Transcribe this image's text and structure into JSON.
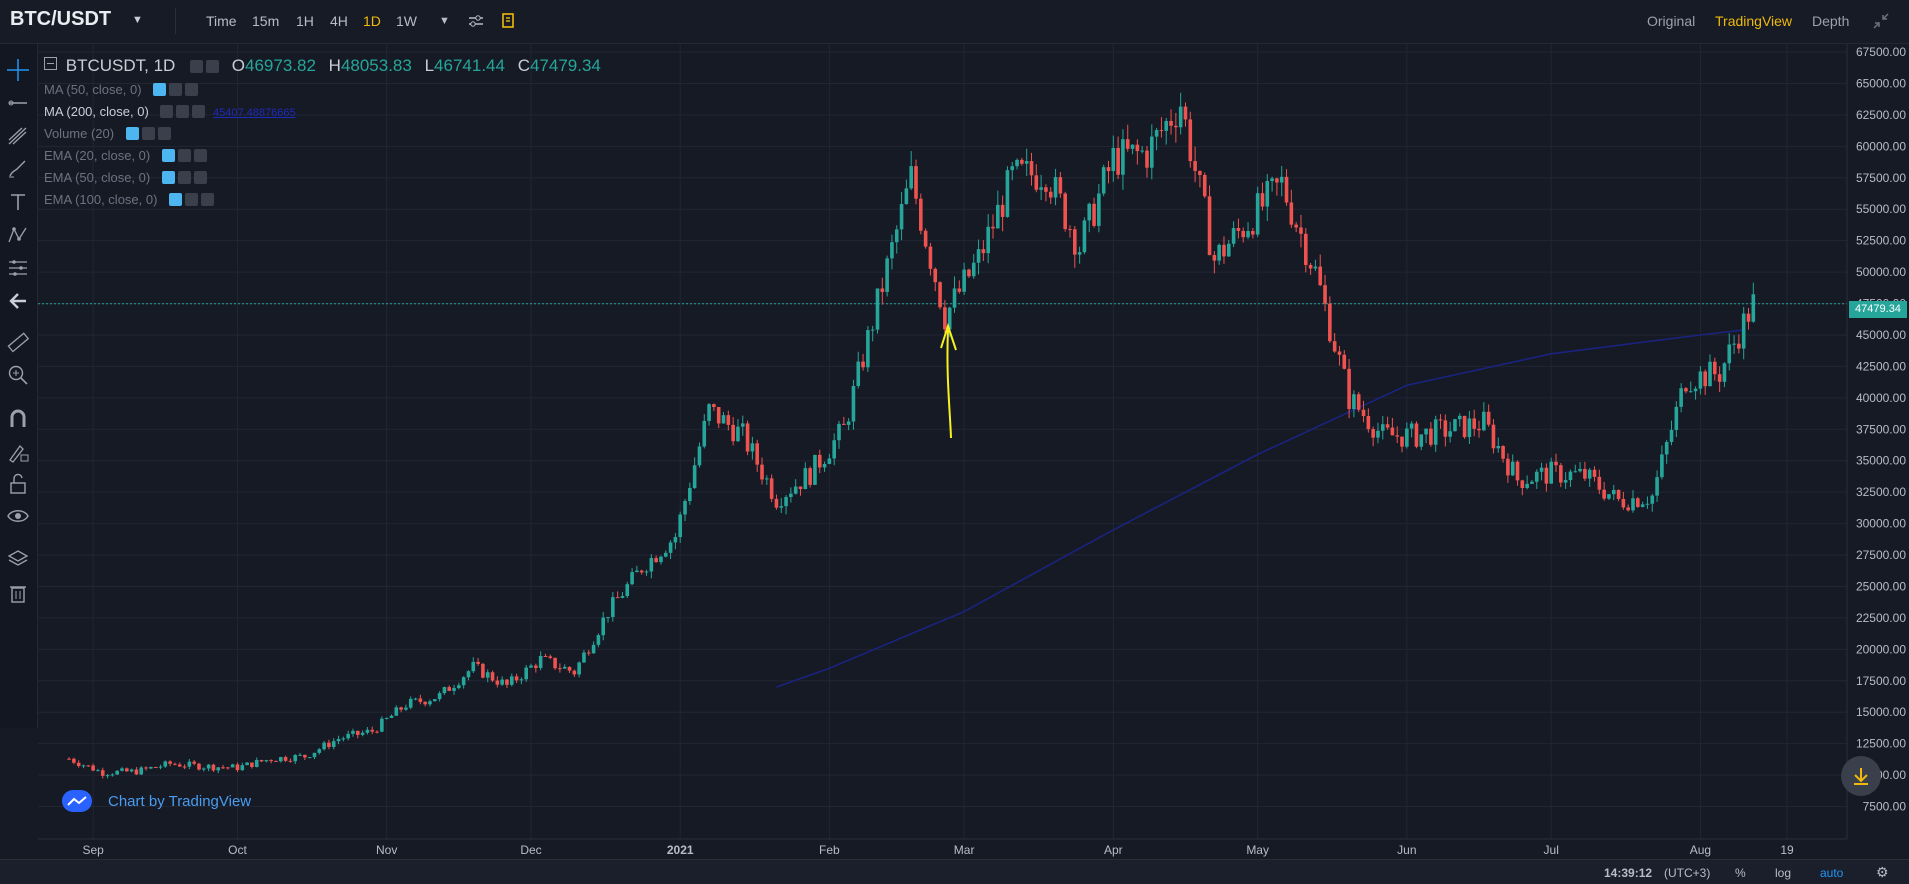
{
  "header": {
    "symbol": "BTC/USDT",
    "timeframes": [
      "Time",
      "15m",
      "1H",
      "4H",
      "1D",
      "1W"
    ],
    "active_timeframe": "1D",
    "views": [
      "Original",
      "TradingView",
      "Depth"
    ],
    "active_view": "TradingView"
  },
  "legend": {
    "symbol": "BTCUSDT, 1D",
    "open_label": "O",
    "open": "46973.82",
    "high_label": "H",
    "high": "48053.83",
    "low_label": "L",
    "low": "46741.44",
    "close_label": "C",
    "close": "47479.34",
    "indicators": [
      {
        "label": "MA (50, close, 0)",
        "value": ""
      },
      {
        "label": "MA (200, close, 0)",
        "value": "45407.48876665"
      },
      {
        "label": "Volume (20)",
        "value": ""
      },
      {
        "label": "EMA (20, close, 0)",
        "value": ""
      },
      {
        "label": "EMA (50, close, 0)",
        "value": ""
      },
      {
        "label": "EMA (100, close, 0)",
        "value": ""
      }
    ]
  },
  "branding": {
    "text": "Chart by TradingView"
  },
  "footer": {
    "time": "14:39:12",
    "tz": "(UTC+3)",
    "percent": "%",
    "log": "log",
    "auto": "auto"
  },
  "colors": {
    "up": "#26a69a",
    "down": "#ef5350",
    "ma200": "#1a237e",
    "accent": "#f0b90b",
    "price_line": "#26a69a",
    "annotation": "#f5f21e"
  },
  "chart_data": {
    "type": "candlestick",
    "title": "BTCUSDT, 1D",
    "x_tick_labels": [
      "Sep",
      "Oct",
      "Nov",
      "Dec",
      "2021",
      "Feb",
      "Mar",
      "Apr",
      "May",
      "Jun",
      "Jul",
      "Aug",
      "19"
    ],
    "y_tick_labels": [
      "67500.00",
      "65000.00",
      "62500.00",
      "60000.00",
      "57500.00",
      "55000.00",
      "52500.00",
      "50000.00",
      "47500.00",
      "45000.00",
      "42500.00",
      "40000.00",
      "37500.00",
      "35000.00",
      "32500.00",
      "30000.00",
      "27500.00",
      "25000.00",
      "22500.00",
      "20000.00",
      "17500.00",
      "15000.00",
      "12500.00",
      "10000.00",
      "7500.00"
    ],
    "ylim": [
      5000,
      67500
    ],
    "last_price": "47479.34",
    "grid": true,
    "weekly_close": [
      [
        "2020-08-27",
        11300
      ],
      [
        "2020-09-03",
        10200
      ],
      [
        "2020-09-10",
        10300
      ],
      [
        "2020-09-17",
        10900
      ],
      [
        "2020-09-24",
        10700
      ],
      [
        "2020-10-01",
        10600
      ],
      [
        "2020-10-08",
        11300
      ],
      [
        "2020-10-15",
        11500
      ],
      [
        "2020-10-22",
        12900
      ],
      [
        "2020-10-29",
        13500
      ],
      [
        "2020-11-05",
        15600
      ],
      [
        "2020-11-12",
        16300
      ],
      [
        "2020-11-19",
        18600
      ],
      [
        "2020-11-26",
        17100
      ],
      [
        "2020-12-03",
        19200
      ],
      [
        "2020-12-10",
        18200
      ],
      [
        "2020-12-17",
        23000
      ],
      [
        "2020-12-24",
        26500
      ],
      [
        "2020-12-31",
        29000
      ],
      [
        "2021-01-07",
        39000
      ],
      [
        "2021-01-14",
        37000
      ],
      [
        "2021-01-21",
        32000
      ],
      [
        "2021-01-28",
        34000
      ],
      [
        "2021-02-04",
        37500
      ],
      [
        "2021-02-11",
        47500
      ],
      [
        "2021-02-18",
        57500
      ],
      [
        "2021-02-25",
        46500
      ],
      [
        "2021-03-04",
        51000
      ],
      [
        "2021-03-11",
        57500
      ],
      [
        "2021-03-18",
        58000
      ],
      [
        "2021-03-25",
        52000
      ],
      [
        "2021-04-01",
        59000
      ],
      [
        "2021-04-08",
        59500
      ],
      [
        "2021-04-15",
        63500
      ],
      [
        "2021-04-22",
        51000
      ],
      [
        "2021-04-29",
        54000
      ],
      [
        "2021-05-06",
        57000
      ],
      [
        "2021-05-13",
        50000
      ],
      [
        "2021-05-20",
        40000
      ],
      [
        "2021-05-27",
        37000
      ],
      [
        "2021-06-03",
        37000
      ],
      [
        "2021-06-10",
        37500
      ],
      [
        "2021-06-17",
        38000
      ],
      [
        "2021-06-24",
        33500
      ],
      [
        "2021-07-01",
        34000
      ],
      [
        "2021-07-08",
        33800
      ],
      [
        "2021-07-15",
        31800
      ],
      [
        "2021-07-22",
        32200
      ],
      [
        "2021-07-29",
        41500
      ],
      [
        "2021-08-05",
        42000
      ],
      [
        "2021-08-12",
        47500
      ]
    ],
    "ma200": [
      [
        "2021-01-21",
        17000
      ],
      [
        "2021-02-01",
        18500
      ],
      [
        "2021-03-01",
        23000
      ],
      [
        "2021-04-01",
        29500
      ],
      [
        "2021-05-01",
        35500
      ],
      [
        "2021-06-01",
        41000
      ],
      [
        "2021-07-01",
        43500
      ],
      [
        "2021-08-01",
        45000
      ],
      [
        "2021-08-10",
        45400
      ]
    ]
  }
}
